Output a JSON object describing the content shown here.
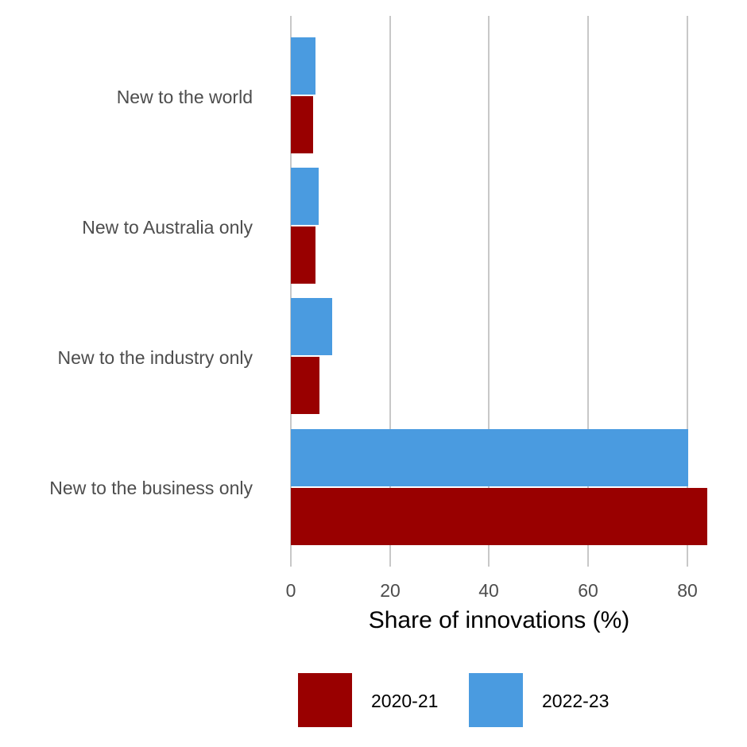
{
  "chart_data": {
    "type": "bar",
    "orientation": "horizontal",
    "categories": [
      "New to the world",
      "New to Australia only",
      "New to the industry only",
      "New to the business only"
    ],
    "series": [
      {
        "name": "2020-21",
        "color": "#990000",
        "values": [
          4.5,
          5.0,
          5.8,
          84.0
        ]
      },
      {
        "name": "2022-23",
        "color": "#4a9be0",
        "values": [
          5.0,
          5.6,
          8.3,
          80.2
        ]
      }
    ],
    "title": "",
    "xlabel": "Share of innovations (%)",
    "ylabel": "",
    "xlim": [
      0,
      84
    ],
    "xticks": [
      "0",
      "20",
      "40",
      "60",
      "80"
    ],
    "grid": true,
    "legend_position": "bottom"
  },
  "axis": {
    "xlabel": "Share of innovations (%)",
    "ticks": [
      "0",
      "20",
      "40",
      "60",
      "80"
    ]
  },
  "legend": [
    {
      "label": "2020-21",
      "color": "#990000"
    },
    {
      "label": "2022-23",
      "color": "#4a9be0"
    }
  ]
}
